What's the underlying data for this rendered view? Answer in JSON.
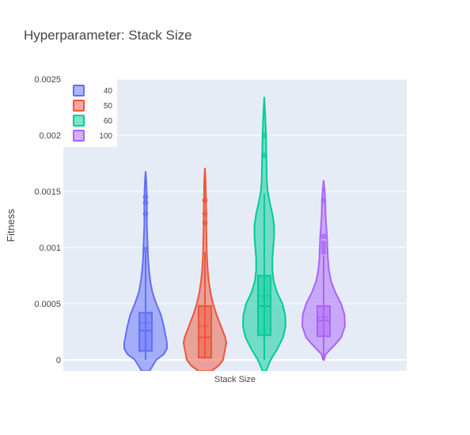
{
  "chart_data": {
    "type": "violin",
    "title": "Hyperparameter: Stack Size",
    "xlabel": "Stack Size",
    "ylabel": "Fitness",
    "ylim": [
      0,
      0.0025
    ],
    "yticks": [
      {
        "value": 0,
        "label": "0"
      },
      {
        "value": 0.0005,
        "label": "0.0005"
      },
      {
        "value": 0.001,
        "label": "0.001"
      },
      {
        "value": 0.0015,
        "label": "0.0015"
      },
      {
        "value": 0.002,
        "label": "0.002"
      },
      {
        "value": 0.0025,
        "label": "0.0025"
      }
    ],
    "legend_placement": "top-left",
    "grid": true,
    "plot_bg": "#e5ecf6",
    "series": [
      {
        "name": "40",
        "color": "#636efa",
        "box": {
          "min": 0.0,
          "q1": 8e-05,
          "median": 0.00026,
          "mean": 0.00033,
          "q3": 0.00042,
          "max": 0.00096
        },
        "range": [
          -0.0001,
          0.00168
        ],
        "density": [
          [
            -0.0001,
            0.18
          ],
          [
            0,
            0.5
          ],
          [
            5e-05,
            0.85
          ],
          [
            0.0001,
            1.0
          ],
          [
            0.00015,
            1.0
          ],
          [
            0.0002,
            0.95
          ],
          [
            0.0003,
            0.85
          ],
          [
            0.0004,
            0.72
          ],
          [
            0.0005,
            0.5
          ],
          [
            0.0006,
            0.32
          ],
          [
            0.0007,
            0.22
          ],
          [
            0.0008,
            0.16
          ],
          [
            0.0009,
            0.12
          ],
          [
            0.001,
            0.1
          ],
          [
            0.0011,
            0.08
          ],
          [
            0.0012,
            0.06
          ],
          [
            0.0013,
            0.06
          ],
          [
            0.0014,
            0.06
          ],
          [
            0.0015,
            0.05
          ],
          [
            0.0016,
            0.03
          ],
          [
            0.00168,
            0.0
          ]
        ],
        "outliers": [
          0.00098,
          0.0013,
          0.0014,
          0.00145
        ]
      },
      {
        "name": "50",
        "color": "#ef553b",
        "box": {
          "min": 1e-05,
          "q1": 2e-05,
          "median": 0.0002,
          "mean": 0.0003,
          "q3": 0.00048,
          "max": 0.00096
        },
        "range": [
          -0.0001,
          0.00171
        ],
        "density": [
          [
            -0.0001,
            0.3
          ],
          [
            -5e-05,
            0.65
          ],
          [
            0,
            0.85
          ],
          [
            0.0001,
            0.95
          ],
          [
            0.00015,
            1.0
          ],
          [
            0.0002,
            0.95
          ],
          [
            0.0003,
            0.75
          ],
          [
            0.0004,
            0.55
          ],
          [
            0.0005,
            0.38
          ],
          [
            0.0006,
            0.26
          ],
          [
            0.0007,
            0.18
          ],
          [
            0.0008,
            0.13
          ],
          [
            0.0009,
            0.1
          ],
          [
            0.001,
            0.08
          ],
          [
            0.0011,
            0.07
          ],
          [
            0.0012,
            0.06
          ],
          [
            0.0013,
            0.06
          ],
          [
            0.0014,
            0.05
          ],
          [
            0.0015,
            0.04
          ],
          [
            0.0016,
            0.03
          ],
          [
            0.00171,
            0.0
          ]
        ],
        "outliers": [
          0.00122,
          0.0013,
          0.00142
        ]
      },
      {
        "name": "60",
        "color": "#00cc96",
        "box": {
          "min": 0.0,
          "q1": 0.00022,
          "median": 0.00048,
          "mean": 0.00057,
          "q3": 0.00075,
          "max": 0.00148
        },
        "range": [
          -0.0001,
          0.00234
        ],
        "density": [
          [
            -0.0001,
            0.08
          ],
          [
            0,
            0.3
          ],
          [
            0.0001,
            0.62
          ],
          [
            0.0002,
            0.88
          ],
          [
            0.0003,
            1.0
          ],
          [
            0.0004,
            0.98
          ],
          [
            0.0005,
            0.85
          ],
          [
            0.0006,
            0.6
          ],
          [
            0.0007,
            0.44
          ],
          [
            0.0008,
            0.38
          ],
          [
            0.0009,
            0.38
          ],
          [
            0.001,
            0.42
          ],
          [
            0.0011,
            0.46
          ],
          [
            0.0012,
            0.46
          ],
          [
            0.0013,
            0.38
          ],
          [
            0.0014,
            0.26
          ],
          [
            0.0015,
            0.16
          ],
          [
            0.0016,
            0.12
          ],
          [
            0.0017,
            0.11
          ],
          [
            0.0018,
            0.1
          ],
          [
            0.0019,
            0.09
          ],
          [
            0.002,
            0.08
          ],
          [
            0.0021,
            0.06
          ],
          [
            0.0022,
            0.04
          ],
          [
            0.00234,
            0.0
          ]
        ],
        "outliers": [
          0.00182,
          0.002
        ]
      },
      {
        "name": "100",
        "color": "#ab63fa",
        "box": {
          "min": 0.0,
          "q1": 0.00021,
          "median": 0.00035,
          "mean": 0.00038,
          "q3": 0.00048,
          "max": 0.00093
        },
        "range": [
          0.0,
          0.0016
        ],
        "density": [
          [
            0,
            0.02
          ],
          [
            5e-05,
            0.1
          ],
          [
            0.0001,
            0.35
          ],
          [
            0.00015,
            0.6
          ],
          [
            0.0002,
            0.82
          ],
          [
            0.0003,
            1.0
          ],
          [
            0.0004,
            0.98
          ],
          [
            0.0005,
            0.82
          ],
          [
            0.0006,
            0.55
          ],
          [
            0.0007,
            0.35
          ],
          [
            0.0008,
            0.25
          ],
          [
            0.0009,
            0.2
          ],
          [
            0.001,
            0.18
          ],
          [
            0.0011,
            0.16
          ],
          [
            0.0012,
            0.12
          ],
          [
            0.0013,
            0.09
          ],
          [
            0.0014,
            0.08
          ],
          [
            0.0015,
            0.05
          ],
          [
            0.0016,
            0.0
          ]
        ],
        "outliers": [
          0.00096,
          0.001,
          0.00104,
          0.0011,
          0.00142
        ]
      }
    ]
  }
}
